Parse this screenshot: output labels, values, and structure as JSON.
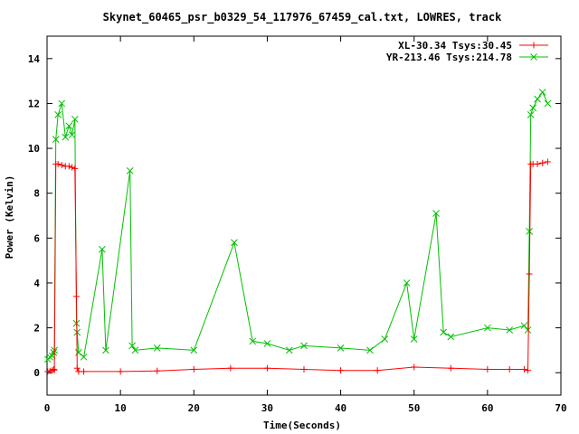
{
  "chart_data": {
    "type": "line",
    "title": "Skynet_60465_psr_b0329_54_117976_67459_cal.txt, LOWRES, track",
    "xlabel": "Time(Seconds)",
    "ylabel": "Power (Kelvin)",
    "xlim": [
      0,
      70
    ],
    "ylim": [
      -1,
      15
    ],
    "x_ticks": [
      0,
      10,
      20,
      30,
      40,
      50,
      60,
      70
    ],
    "x_tick_labels": [
      "0",
      "10",
      "20",
      "30",
      "40",
      "50",
      "60",
      "70"
    ],
    "y_ticks": [
      0,
      2,
      4,
      6,
      8,
      10,
      12,
      14
    ],
    "y_tick_labels": [
      "0",
      "2",
      "4",
      "6",
      "8",
      "10",
      "12",
      "14"
    ],
    "grid": false,
    "legend_position": "top-right",
    "series": [
      {
        "name": "XL-30.34 Tsys:30.45",
        "color": "#ff0000",
        "marker": "plus",
        "x": [
          0.1,
          0.4,
          0.7,
          0.9,
          1.0,
          1.2,
          1.5,
          2.0,
          2.5,
          3.0,
          3.4,
          3.8,
          4.0,
          4.1,
          4.3,
          5.0,
          10.0,
          15.0,
          20.0,
          25.0,
          30.0,
          35.0,
          40.0,
          45.0,
          50.0,
          55.0,
          60.0,
          63.0,
          65.0,
          65.5,
          65.7,
          65.9,
          66.2,
          66.8,
          67.5,
          68.2
        ],
        "y": [
          0.05,
          0.08,
          0.1,
          0.15,
          0.12,
          9.3,
          9.3,
          9.25,
          9.2,
          9.2,
          9.15,
          9.1,
          3.4,
          0.2,
          0.05,
          0.05,
          0.05,
          0.08,
          0.15,
          0.2,
          0.2,
          0.15,
          0.1,
          0.1,
          0.25,
          0.2,
          0.15,
          0.15,
          0.15,
          0.1,
          4.4,
          9.3,
          9.3,
          9.3,
          9.35,
          9.4
        ]
      },
      {
        "name": "YR-213.46 Tsys:214.78",
        "color": "#00c000",
        "marker": "cross",
        "x": [
          0.1,
          0.4,
          0.7,
          0.9,
          1.0,
          1.2,
          1.5,
          2.0,
          2.5,
          3.0,
          3.4,
          3.8,
          4.0,
          4.1,
          4.3,
          5.0,
          7.5,
          8.0,
          11.3,
          11.6,
          12.0,
          15.0,
          20.0,
          25.5,
          28.0,
          30.0,
          33.0,
          35.0,
          40.0,
          44.0,
          46.0,
          49.0,
          50.0,
          53.0,
          54.0,
          55.0,
          60.0,
          63.0,
          65.0,
          65.5,
          65.7,
          65.9,
          66.2,
          66.8,
          67.5,
          68.2
        ],
        "y": [
          0.6,
          0.7,
          0.75,
          0.9,
          1.0,
          10.4,
          11.5,
          12.0,
          10.5,
          11.0,
          10.6,
          11.3,
          2.2,
          1.8,
          0.9,
          0.7,
          5.5,
          1.0,
          9.0,
          1.2,
          1.0,
          1.1,
          1.0,
          5.8,
          1.4,
          1.3,
          1.0,
          1.2,
          1.1,
          1.0,
          1.5,
          4.0,
          1.5,
          7.1,
          1.8,
          1.6,
          2.0,
          1.9,
          2.1,
          1.9,
          6.3,
          11.5,
          11.8,
          12.2,
          12.5,
          12.0
        ]
      }
    ]
  }
}
